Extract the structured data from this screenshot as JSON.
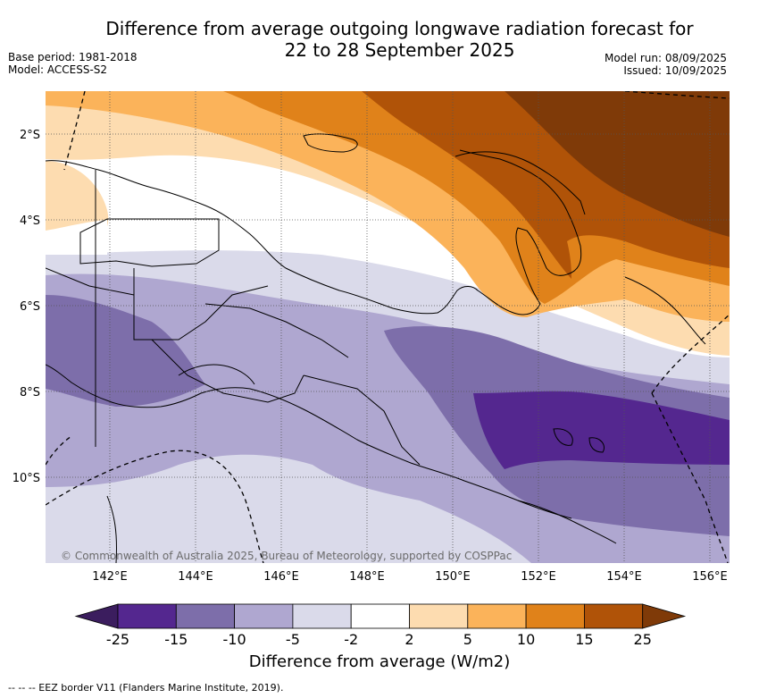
{
  "header": {
    "title_line1": "Difference from average outgoing longwave radiation forecast for",
    "title_line2": "22 to 28 September 2025",
    "base_period": "Base period: 1981-2018",
    "model": "Model: ACCESS-S2",
    "model_run": "Model run: 08/09/2025",
    "issued": "Issued: 10/09/2025"
  },
  "map": {
    "copyright": "© Commonwealth of Australia 2025, Bureau of Meteorology, supported by COSPPac",
    "lon_labels": [
      "142°E",
      "144°E",
      "146°E",
      "148°E",
      "150°E",
      "152°E",
      "154°E",
      "156°E"
    ],
    "lat_labels": [
      "2°S",
      "4°S",
      "6°S",
      "8°S",
      "10°S"
    ],
    "lon_range": [
      140.5,
      156.5
    ],
    "lat_range": [
      -1.0,
      -12.0
    ],
    "gridlines": true
  },
  "colorbar": {
    "ticks": [
      "-25",
      "-15",
      "-10",
      "-5",
      "-2",
      "2",
      "5",
      "10",
      "15",
      "25"
    ],
    "colors": [
      "#3b1d5e",
      "#54278f",
      "#7d6eaa",
      "#afa7d0",
      "#dadaea",
      "#ffffff",
      "#fddcb0",
      "#fbb35a",
      "#e0821a",
      "#b05308",
      "#7f3a08"
    ],
    "label": "Difference from average (W/m2)"
  },
  "footnote": "--  --  -- EEZ border V11 (Flanders Marine Institute, 2019)."
}
